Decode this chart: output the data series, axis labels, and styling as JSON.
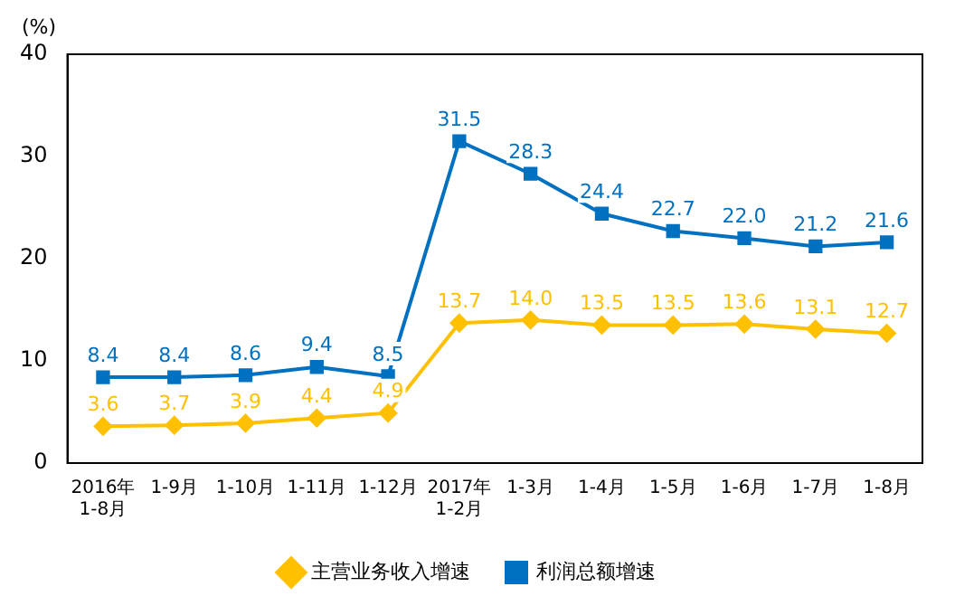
{
  "chart_data": {
    "type": "line",
    "ylabel": "(%)",
    "categories": [
      "2016年\n1-8月",
      "1-9月",
      "1-10月",
      "1-11月",
      "1-12月",
      "2017年\n1-2月",
      "1-3月",
      "1-4月",
      "1-5月",
      "1-6月",
      "1-7月",
      "1-8月"
    ],
    "series": [
      {
        "name": "主营业务收入增速",
        "color": "#ffc000",
        "marker": "diamond",
        "values": [
          3.6,
          3.7,
          3.9,
          4.4,
          4.9,
          13.7,
          14.0,
          13.5,
          13.5,
          13.6,
          13.1,
          12.7
        ],
        "value_labels": [
          "3.6",
          "3.7",
          "3.9",
          "4.4",
          "4.9",
          "13.7",
          "14.0",
          "13.5",
          "13.5",
          "13.6",
          "13.1",
          "12.7"
        ]
      },
      {
        "name": "利润总额增速",
        "color": "#0070c0",
        "marker": "square",
        "values": [
          8.4,
          8.4,
          8.6,
          9.4,
          8.5,
          31.5,
          28.3,
          24.4,
          22.7,
          22.0,
          21.2,
          21.6
        ],
        "value_labels": [
          "8.4",
          "8.4",
          "8.6",
          "9.4",
          "8.5",
          "31.5",
          "28.3",
          "24.4",
          "22.7",
          "22.0",
          "21.2",
          "21.6"
        ]
      }
    ],
    "ylim": [
      0,
      40
    ],
    "yticks": [
      0,
      10,
      20,
      30,
      40
    ],
    "grid": false,
    "legend": "bottom"
  }
}
